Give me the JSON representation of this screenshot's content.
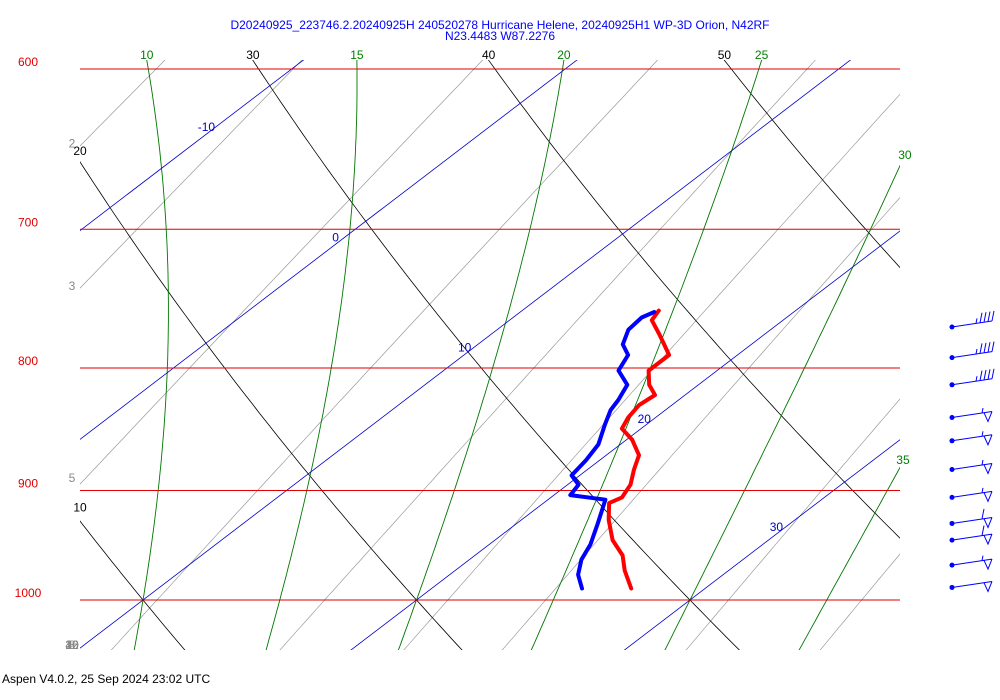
{
  "chart_data": {
    "type": "skewt",
    "title": "D20240925_223746.2.20240925H 240520278 Hurricane Helene, 20240925H1 WP-3D Orion, N42RF",
    "subtitle": "N23.4483 W87.2276",
    "footer": "Aspen V4.0.2, 25 Sep 2024  23:02 UTC",
    "ylim": [
      600,
      1050
    ],
    "yticks": [
      600,
      700,
      800,
      900,
      1000
    ],
    "isotherms": [
      -10,
      0,
      10,
      20,
      30
    ],
    "dry_adiabats": [
      10,
      20,
      30,
      40,
      50
    ],
    "moist_adiabats": [
      10,
      15,
      20,
      25,
      30,
      35
    ],
    "mixing_ratios": [
      2,
      3,
      5,
      8,
      12,
      16,
      20,
      30,
      40
    ],
    "series": [
      {
        "color": "#ff0000",
        "pressure": [
          757,
          764,
          775,
          790,
          802,
          813,
          821,
          829,
          839,
          848,
          857,
          870,
          882,
          895,
          906,
          911,
          926,
          944,
          958,
          972,
          989
        ],
        "values": [
          15.0,
          15.2,
          16.2,
          17.5,
          17.5,
          18.2,
          18.9,
          18.8,
          19.0,
          19.3,
          20.2,
          21.2,
          21.7,
          22.3,
          22.6,
          22.4,
          23.2,
          24.3,
          25.4,
          26.2,
          27.3
        ]
      },
      {
        "color": "#0000ff",
        "pressure": [
          758,
          762,
          771,
          782,
          790,
          802,
          813,
          825,
          833,
          845,
          861,
          874,
          887,
          895,
          904,
          908,
          930,
          948,
          962,
          976,
          989
        ],
        "values": [
          14.9,
          14.7,
          14.8,
          15.3,
          16.0,
          16.4,
          17.4,
          17.8,
          18.0,
          18.5,
          19.2,
          19.5,
          19.7,
          20.4,
          20.6,
          22.1,
          23.0,
          23.7,
          24.1,
          24.7,
          25.5
        ]
      }
    ],
    "wind_barbs": {
      "color": "#0000ff",
      "pressure": [
        769,
        792,
        813,
        839,
        858,
        882,
        906,
        929,
        944,
        967,
        988
      ],
      "speed": [
        45,
        45,
        45,
        55,
        55,
        55,
        55,
        60,
        60,
        55,
        50
      ]
    }
  }
}
